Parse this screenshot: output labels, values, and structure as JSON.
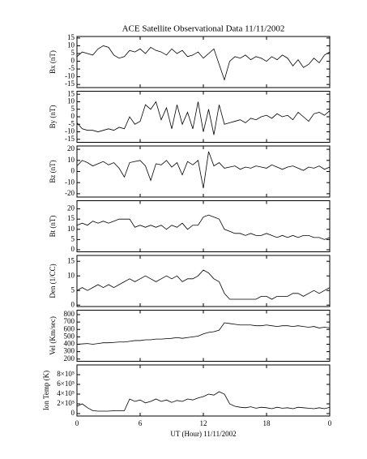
{
  "chart_data": [
    {
      "type": "line",
      "title": "ACE Satellite Observational Data  11/11/2002",
      "ylabel": "Bx (nT)",
      "color": "#000000",
      "x": [
        0,
        0.5,
        1,
        1.5,
        2,
        2.5,
        3,
        3.5,
        4,
        4.5,
        5,
        5.5,
        6,
        6.5,
        7,
        7.5,
        8,
        8.5,
        9,
        9.5,
        10,
        10.5,
        11,
        11.5,
        12,
        12.5,
        13,
        13.5,
        14,
        14.5,
        15,
        15.5,
        16,
        16.5,
        17,
        17.5,
        18,
        18.5,
        19,
        19.5,
        20,
        20.5,
        21,
        21.5,
        22,
        22.5,
        23,
        23.5,
        24
      ],
      "values": [
        3,
        6,
        5,
        4,
        8,
        10,
        9,
        4,
        2,
        3,
        7,
        6,
        8,
        5,
        9,
        7,
        6,
        4,
        8,
        5,
        7,
        3,
        4,
        6,
        2,
        5,
        8,
        -2,
        -12,
        0,
        3,
        2,
        4,
        1,
        3,
        2,
        0,
        3,
        1,
        4,
        2,
        -3,
        1,
        -4,
        -2,
        2,
        -1,
        4,
        6
      ],
      "xlim": [
        0,
        24
      ],
      "ylim": [
        -17,
        16
      ],
      "yticks": [
        -15,
        -10,
        -5,
        0,
        5,
        10,
        15
      ]
    },
    {
      "type": "line",
      "ylabel": "By (nT)",
      "color": "#000000",
      "x": [
        0,
        0.5,
        1,
        1.5,
        2,
        2.5,
        3,
        3.5,
        4,
        4.5,
        5,
        5.5,
        6,
        6.5,
        7,
        7.5,
        8,
        8.5,
        9,
        9.5,
        10,
        10.5,
        11,
        11.5,
        12,
        12.5,
        13,
        13.5,
        14,
        14.5,
        15,
        15.5,
        16,
        16.5,
        17,
        17.5,
        18,
        18.5,
        19,
        19.5,
        20,
        20.5,
        21,
        21.5,
        22,
        22.5,
        23,
        23.5,
        24
      ],
      "values": [
        -4,
        -8,
        -9,
        -9,
        -10,
        -9,
        -8,
        -9,
        -7,
        -8,
        0,
        -5,
        -3,
        8,
        5,
        10,
        -2,
        6,
        -8,
        8,
        -5,
        3,
        -8,
        10,
        -10,
        5,
        -12,
        8,
        -5,
        -4,
        -3,
        -2,
        -4,
        -1,
        -2,
        0,
        1,
        -1,
        2,
        0,
        1,
        -2,
        3,
        0,
        -3,
        2,
        3,
        1,
        4
      ],
      "xlim": [
        0,
        24
      ],
      "ylim": [
        -17,
        17
      ],
      "yticks": [
        -15,
        -10,
        -5,
        0,
        5,
        10,
        15
      ]
    },
    {
      "type": "line",
      "ylabel": "Bz (nT)",
      "color": "#000000",
      "x": [
        0,
        0.5,
        1,
        1.5,
        2,
        2.5,
        3,
        3.5,
        4,
        4.5,
        5,
        5.5,
        6,
        6.5,
        7,
        7.5,
        8,
        8.5,
        9,
        9.5,
        10,
        10.5,
        11,
        11.5,
        12,
        12.5,
        13,
        13.5,
        14,
        14.5,
        15,
        15.5,
        16,
        16.5,
        17,
        17.5,
        18,
        18.5,
        19,
        19.5,
        20,
        20.5,
        21,
        21.5,
        22,
        22.5,
        23,
        23.5,
        24
      ],
      "values": [
        5,
        10,
        8,
        5,
        7,
        9,
        6,
        8,
        3,
        -5,
        8,
        9,
        10,
        5,
        -8,
        7,
        6,
        10,
        4,
        8,
        -3,
        9,
        6,
        10,
        -15,
        18,
        5,
        8,
        3,
        4,
        5,
        2,
        4,
        3,
        5,
        4,
        3,
        6,
        4,
        2,
        4,
        5,
        3,
        1,
        4,
        3,
        5,
        2,
        4
      ],
      "xlim": [
        0,
        24
      ],
      "ylim": [
        -23,
        23
      ],
      "yticks": [
        -20,
        -10,
        0,
        10,
        20
      ]
    },
    {
      "type": "line",
      "ylabel": "Bt (nT)",
      "color": "#000000",
      "x": [
        0,
        0.5,
        1,
        1.5,
        2,
        2.5,
        3,
        3.5,
        4,
        4.5,
        5,
        5.5,
        6,
        6.5,
        7,
        7.5,
        8,
        8.5,
        9,
        9.5,
        10,
        10.5,
        11,
        11.5,
        12,
        12.5,
        13,
        13.5,
        14,
        14.5,
        15,
        15.5,
        16,
        16.5,
        17,
        17.5,
        18,
        18.5,
        19,
        19.5,
        20,
        20.5,
        21,
        21.5,
        22,
        22.5,
        23,
        23.5,
        24
      ],
      "values": [
        12,
        13,
        12,
        14,
        13,
        14,
        13,
        14,
        15,
        15,
        15,
        11,
        12,
        11,
        12,
        11,
        12,
        10,
        12,
        11,
        13,
        10,
        12,
        12,
        16,
        17,
        16,
        15,
        10,
        9,
        8,
        8,
        7,
        8,
        7,
        7,
        8,
        7,
        6,
        7,
        6,
        7,
        6,
        7,
        7,
        6,
        6,
        5,
        6
      ],
      "xlim": [
        0,
        24
      ],
      "ylim": [
        -1,
        24
      ],
      "yticks": [
        0,
        5,
        10,
        15,
        20
      ]
    },
    {
      "type": "line",
      "ylabel": "Den (1/CC)",
      "color": "#000000",
      "x": [
        0,
        0.5,
        1,
        1.5,
        2,
        2.5,
        3,
        3.5,
        4,
        4.5,
        5,
        5.5,
        6,
        6.5,
        7,
        7.5,
        8,
        8.5,
        9,
        9.5,
        10,
        10.5,
        11,
        11.5,
        12,
        12.5,
        13,
        13.5,
        14,
        14.5,
        15,
        15.5,
        16,
        16.5,
        17,
        17.5,
        18,
        18.5,
        19,
        19.5,
        20,
        20.5,
        21,
        21.5,
        22,
        22.5,
        23,
        23.5,
        24
      ],
      "values": [
        5,
        6,
        5,
        6,
        7,
        6,
        7,
        6,
        7,
        8,
        9,
        8,
        9,
        10,
        9,
        8,
        9,
        10,
        9,
        10,
        8,
        9,
        9,
        10,
        12,
        11,
        9,
        8,
        4,
        2,
        2,
        2,
        2,
        2,
        2,
        3,
        3,
        2,
        3,
        3,
        3,
        4,
        4,
        3,
        4,
        5,
        4,
        5,
        6
      ],
      "xlim": [
        0,
        24
      ],
      "ylim": [
        -0.5,
        17
      ],
      "yticks": [
        0,
        5,
        10,
        15
      ]
    },
    {
      "type": "line",
      "ylabel": "Vel (Km/sec)",
      "color": "#000000",
      "x": [
        0,
        0.5,
        1,
        1.5,
        2,
        2.5,
        3,
        3.5,
        4,
        4.5,
        5,
        5.5,
        6,
        6.5,
        7,
        7.5,
        8,
        8.5,
        9,
        9.5,
        10,
        10.5,
        11,
        11.5,
        12,
        12.5,
        13,
        13.5,
        14,
        14.5,
        15,
        15.5,
        16,
        16.5,
        17,
        17.5,
        18,
        18.5,
        19,
        19.5,
        20,
        20.5,
        21,
        21.5,
        22,
        22.5,
        23,
        23.5,
        24
      ],
      "values": [
        400,
        405,
        410,
        400,
        410,
        420,
        420,
        425,
        430,
        430,
        440,
        450,
        450,
        460,
        460,
        470,
        470,
        475,
        480,
        490,
        480,
        490,
        500,
        510,
        540,
        560,
        570,
        590,
        690,
        680,
        670,
        660,
        660,
        660,
        650,
        650,
        660,
        650,
        640,
        650,
        650,
        640,
        650,
        640,
        630,
        640,
        620,
        630,
        620
      ],
      "xlim": [
        0,
        24
      ],
      "ylim": [
        170,
        860
      ],
      "yticks": [
        200,
        300,
        400,
        500,
        600,
        700,
        800
      ]
    },
    {
      "type": "line",
      "ylabel": "Ion Temp (K)",
      "xlabel": "UT (Hour)  11/11/2002",
      "color": "#000000",
      "x": [
        0,
        0.5,
        1,
        1.5,
        2,
        2.5,
        3,
        3.5,
        4,
        4.5,
        5,
        5.5,
        6,
        6.5,
        7,
        7.5,
        8,
        8.5,
        9,
        9.5,
        10,
        10.5,
        11,
        11.5,
        12,
        12.5,
        13,
        13.5,
        14,
        14.5,
        15,
        15.5,
        16,
        16.5,
        17,
        17.5,
        18,
        18.5,
        19,
        19.5,
        20,
        20.5,
        21,
        21.5,
        22,
        22.5,
        23,
        23.5,
        24
      ],
      "values": [
        150000,
        200000,
        120000,
        60000,
        50000,
        50000,
        50000,
        60000,
        60000,
        60000,
        300000,
        250000,
        280000,
        220000,
        250000,
        300000,
        250000,
        280000,
        230000,
        270000,
        250000,
        300000,
        280000,
        320000,
        350000,
        400000,
        380000,
        450000,
        400000,
        200000,
        150000,
        130000,
        120000,
        140000,
        110000,
        130000,
        120000,
        100000,
        130000,
        110000,
        120000,
        100000,
        130000,
        120000,
        110000,
        100000,
        120000,
        100000,
        130000
      ],
      "xlim": [
        0,
        24
      ],
      "ylim": [
        -50000,
        1000000
      ],
      "yticks": [
        0,
        {
          "value": 200000,
          "label": "2×10⁵"
        },
        {
          "value": 400000,
          "label": "4×10⁵"
        },
        {
          "value": 600000,
          "label": "6×10⁵"
        },
        {
          "value": 800000,
          "label": "8×10⁵"
        }
      ],
      "xticks": [
        0,
        6,
        12,
        18,
        {
          "value": 24,
          "label": "0"
        }
      ]
    }
  ]
}
